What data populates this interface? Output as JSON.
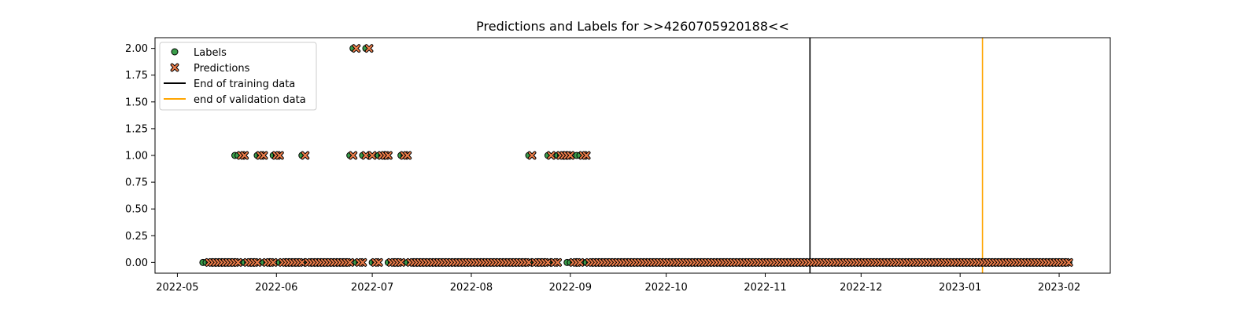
{
  "chart_data": {
    "type": "scatter",
    "title": "Predictions and Labels for >>4260705920188<<",
    "xlabel": "",
    "ylabel": "",
    "x_axis": "date",
    "xlim": [
      "2022-04-24",
      "2023-02-17"
    ],
    "ylim": [
      -0.1,
      2.1
    ],
    "yticks": [
      0.0,
      0.25,
      0.5,
      0.75,
      1.0,
      1.25,
      1.5,
      1.75,
      2.0
    ],
    "ytick_labels": [
      "0.00",
      "0.25",
      "0.50",
      "0.75",
      "1.00",
      "1.25",
      "1.50",
      "1.75",
      "2.00"
    ],
    "xticks": [
      "2022-05-01",
      "2022-06-01",
      "2022-07-01",
      "2022-08-01",
      "2022-09-01",
      "2022-10-01",
      "2022-11-01",
      "2022-12-01",
      "2023-01-01",
      "2023-02-01"
    ],
    "xtick_labels": [
      "2022-05",
      "2022-06",
      "2022-07",
      "2022-08",
      "2022-09",
      "2022-10",
      "2022-11",
      "2022-12",
      "2023-01",
      "2023-02"
    ],
    "grid": false,
    "legend": {
      "position": "top-left",
      "entries": [
        {
          "label": "Labels",
          "marker": "circle"
        },
        {
          "label": "Predictions",
          "marker": "x"
        },
        {
          "label": "End of training data",
          "marker": "line"
        },
        {
          "label": "end of validation data",
          "marker": "line"
        }
      ]
    },
    "colors": {
      "labels_fill": "#3a9d4a",
      "predictions_fill": "#f07f4b",
      "training_line": "#000000",
      "validation_line": "#ffa500"
    },
    "vlines": [
      {
        "name": "End of training data",
        "x": "2022-11-15"
      },
      {
        "name": "end of validation data",
        "x": "2023-01-08"
      }
    ],
    "series": [
      {
        "name": "Labels",
        "marker": "circle",
        "ones": [
          "2022-05-19",
          "2022-05-20",
          "2022-05-26",
          "2022-05-27",
          "2022-05-31",
          "2022-06-01",
          "2022-06-09",
          "2022-06-24",
          "2022-06-28",
          "2022-06-30",
          "2022-07-03",
          "2022-07-04",
          "2022-07-05",
          "2022-07-10",
          "2022-07-11",
          "2022-08-19",
          "2022-08-25",
          "2022-08-28",
          "2022-08-29",
          "2022-08-30",
          "2022-09-03",
          "2022-09-04"
        ],
        "twos": [
          "2022-06-25",
          "2022-06-29"
        ],
        "zeros_start": "2022-05-09",
        "zeros_end": "2023-02-04"
      },
      {
        "name": "Predictions",
        "marker": "x",
        "ones": [
          "2022-05-21",
          "2022-05-22",
          "2022-05-27",
          "2022-05-28",
          "2022-06-01",
          "2022-06-02",
          "2022-06-10",
          "2022-06-25",
          "2022-06-29",
          "2022-07-01",
          "2022-07-04",
          "2022-07-05",
          "2022-07-06",
          "2022-07-11",
          "2022-07-12",
          "2022-08-20",
          "2022-08-26",
          "2022-08-29",
          "2022-08-30",
          "2022-08-31",
          "2022-09-01",
          "2022-09-05",
          "2022-09-06"
        ],
        "twos": [
          "2022-06-26",
          "2022-06-30"
        ],
        "zeros_start": "2022-05-11",
        "zeros_end": "2023-02-04"
      }
    ]
  }
}
